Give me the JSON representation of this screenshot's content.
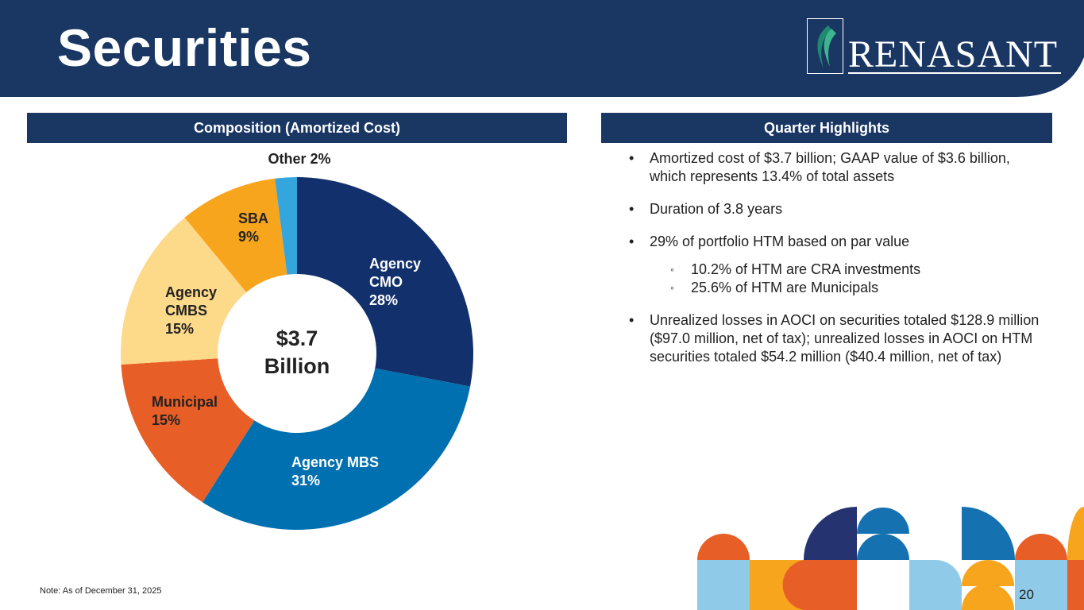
{
  "header": {
    "title": "Securities",
    "logo_text": "RENASANT"
  },
  "left_panel": {
    "heading": "Composition (Amortized Cost)"
  },
  "right_panel": {
    "heading": "Quarter Highlights"
  },
  "chart_data": {
    "type": "pie",
    "center_label": [
      "$3.7",
      "Billion"
    ],
    "slices": [
      {
        "label": [
          "Agency",
          "CMO",
          "28%"
        ],
        "value": 28,
        "color": "#12306b"
      },
      {
        "label": [
          "Agency MBS",
          "31%"
        ],
        "value": 31,
        "color": "#0170b0"
      },
      {
        "label": [
          "Municipal",
          "15%"
        ],
        "value": 15,
        "color": "#e85e27"
      },
      {
        "label": [
          "Agency",
          "CMBS",
          "15%"
        ],
        "value": 15,
        "color": "#fdd98a"
      },
      {
        "label": [
          "SBA",
          "9%"
        ],
        "value": 9,
        "color": "#f8a51e"
      },
      {
        "label": [
          "Other 2%"
        ],
        "value": 2,
        "color": "#35a5dd"
      }
    ]
  },
  "highlights": {
    "bullet_glyph": "•",
    "sub_glyph": "◦",
    "items": [
      "Amortized cost of $3.7 billion; GAAP value of $3.6 billion, which represents 13.4% of total assets",
      "Duration of 3.8 years",
      "29% of portfolio HTM based on par value",
      "Unrealized losses in AOCI on securities totaled $128.9 million ($97.0 million, net of tax); unrealized losses in AOCI on HTM securities totaled $54.2 million ($40.4 million, net of tax)"
    ],
    "sub_items": [
      "10.2% of HTM are CRA investments",
      "25.6% of HTM are Municipals"
    ]
  },
  "footer": {
    "note": "Note:  As of December 31, 2025",
    "page_number": "20"
  }
}
